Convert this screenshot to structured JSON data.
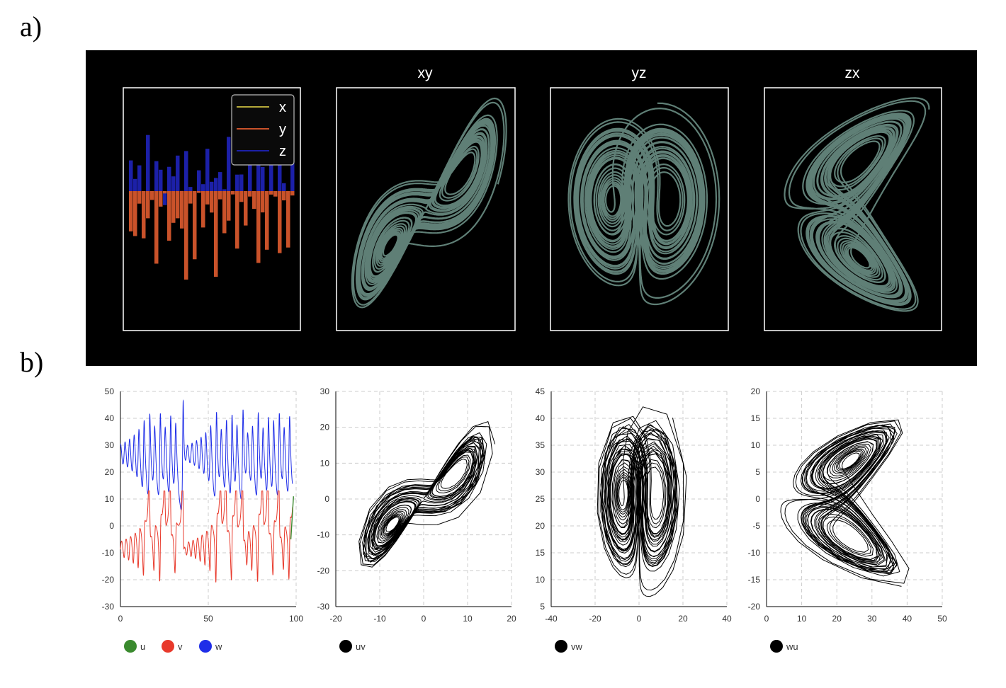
{
  "labels": {
    "a": "a)",
    "b": "b)"
  },
  "colors": {
    "attractor_fill": "#5f7f76",
    "x_line": "#b5a93a",
    "y_line": "#c9522a",
    "z_line": "#1c20a8",
    "u": "#3a8a2e",
    "v": "#e8392b",
    "w": "#1f2ee8",
    "phase_line": "#000000",
    "grid": "#cccccc"
  },
  "chart_data": [
    {
      "id": "a-timeseries",
      "type": "line",
      "title": "",
      "legend": {
        "position": "top-right",
        "entries": [
          "x",
          "y",
          "z"
        ]
      },
      "series": [
        {
          "name": "x"
        },
        {
          "name": "y"
        },
        {
          "name": "z"
        }
      ],
      "grid": false
    },
    {
      "id": "a-xy",
      "type": "line",
      "title": "xy",
      "grid": false
    },
    {
      "id": "a-yz",
      "type": "line",
      "title": "yz",
      "grid": false
    },
    {
      "id": "a-zx",
      "type": "line",
      "title": "zx",
      "grid": false
    },
    {
      "id": "b-timeseries",
      "type": "line",
      "xlim": [
        0,
        100
      ],
      "ylim": [
        -30,
        50
      ],
      "xticks": [
        "0",
        "50",
        "100"
      ],
      "yticks": [
        "50",
        "40",
        "30",
        "20",
        "10",
        "0",
        "-10",
        "-20",
        "-30"
      ],
      "legend": {
        "position": "bottom",
        "entries": [
          "u",
          "v",
          "w"
        ]
      },
      "series": [
        {
          "name": "u"
        },
        {
          "name": "v"
        },
        {
          "name": "w"
        }
      ],
      "grid": true
    },
    {
      "id": "b-uv",
      "type": "line",
      "xlim": [
        -20,
        20
      ],
      "ylim": [
        -30,
        30
      ],
      "xticks": [
        "-20",
        "-10",
        "0",
        "10",
        "20"
      ],
      "yticks": [
        "30",
        "20",
        "10",
        "0",
        "-10",
        "-20",
        "-30"
      ],
      "legend": {
        "position": "bottom",
        "entries": [
          "uv"
        ]
      },
      "grid": true
    },
    {
      "id": "b-vw",
      "type": "line",
      "xlim": [
        -40,
        40
      ],
      "ylim": [
        5,
        45
      ],
      "xticks": [
        "-40",
        "-20",
        "0",
        "20",
        "40"
      ],
      "yticks": [
        "45",
        "40",
        "35",
        "30",
        "25",
        "20",
        "15",
        "10",
        "5"
      ],
      "legend": {
        "position": "bottom",
        "entries": [
          "vw"
        ]
      },
      "grid": true
    },
    {
      "id": "b-wu",
      "type": "line",
      "xlim": [
        0,
        50
      ],
      "ylim": [
        -20,
        20
      ],
      "xticks": [
        "0",
        "10",
        "20",
        "30",
        "40",
        "50"
      ],
      "yticks": [
        "20",
        "15",
        "10",
        "5",
        "0",
        "-5",
        "-10",
        "-15",
        "-20"
      ],
      "legend": {
        "position": "bottom",
        "entries": [
          "wu"
        ]
      },
      "grid": true
    }
  ]
}
